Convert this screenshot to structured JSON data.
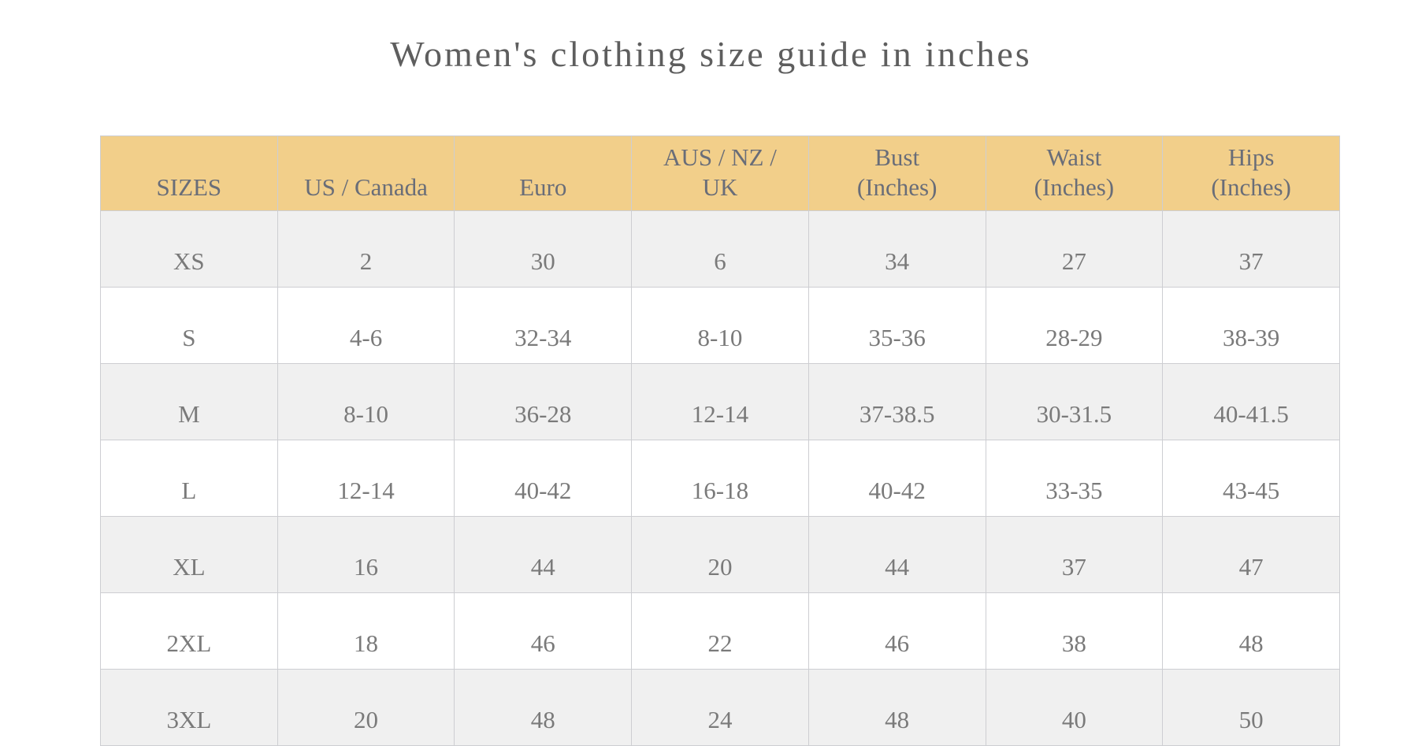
{
  "page": {
    "title": "Women's clothing size guide in inches"
  },
  "table": {
    "columns": [
      {
        "lines": [
          "SIZES"
        ]
      },
      {
        "lines": [
          "US / Canada"
        ]
      },
      {
        "lines": [
          "Euro"
        ]
      },
      {
        "lines": [
          "AUS / NZ /",
          "UK"
        ]
      },
      {
        "lines": [
          "Bust",
          "(Inches)"
        ]
      },
      {
        "lines": [
          "Waist",
          "(Inches)"
        ]
      },
      {
        "lines": [
          "Hips",
          "(Inches)"
        ]
      }
    ],
    "rows": [
      {
        "cells": [
          "XS",
          "2",
          "30",
          "6",
          "34",
          "27",
          "37"
        ]
      },
      {
        "cells": [
          "S",
          "4-6",
          "32-34",
          "8-10",
          "35-36",
          "28-29",
          "38-39"
        ]
      },
      {
        "cells": [
          "M",
          "8-10",
          "36-28",
          "12-14",
          "37-38.5",
          "30-31.5",
          "40-41.5"
        ]
      },
      {
        "cells": [
          "L",
          "12-14",
          "40-42",
          "16-18",
          "40-42",
          "33-35",
          "43-45"
        ]
      },
      {
        "cells": [
          "XL",
          "16",
          "44",
          "20",
          "44",
          "37",
          "47"
        ]
      },
      {
        "cells": [
          "2XL",
          "18",
          "46",
          "22",
          "46",
          "38",
          "48"
        ]
      },
      {
        "cells": [
          "3XL",
          "20",
          "48",
          "24",
          "48",
          "40",
          "50"
        ]
      }
    ],
    "colors": {
      "header_bg": "#f2cf8a",
      "row_alt_bg": "#f0f0f0",
      "row_bg": "#ffffff",
      "border": "#cdced2",
      "cell_text": "#7a7a7a",
      "header_text": "#696d78",
      "title_text": "#5e5e5e"
    }
  }
}
